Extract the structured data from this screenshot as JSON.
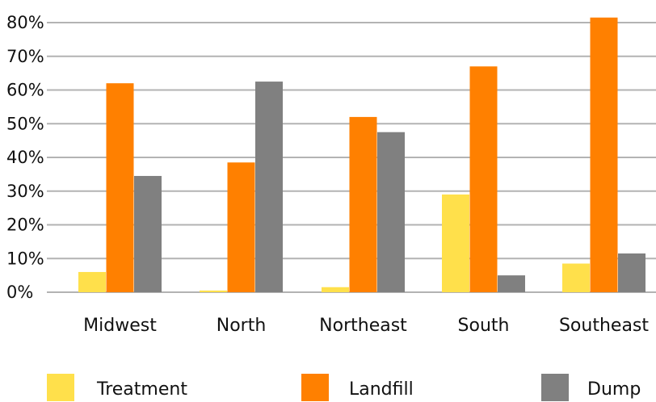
{
  "chart_data": {
    "type": "bar",
    "title": "",
    "xlabel": "",
    "ylabel": "",
    "categories": [
      "Midwest",
      "North",
      "Northeast",
      "South",
      "Southeast"
    ],
    "series": [
      {
        "name": "Treatment",
        "color": "#FFE04B",
        "values": [
          6,
          0.5,
          1.5,
          29,
          8.5
        ]
      },
      {
        "name": "Landfill",
        "color": "#FF8000",
        "values": [
          62,
          38.5,
          52,
          67,
          81.5
        ]
      },
      {
        "name": "Dump",
        "color": "#808080",
        "values": [
          34.5,
          62.5,
          47.5,
          5,
          11.5
        ]
      }
    ],
    "ylim": [
      0,
      80
    ],
    "yticks": [
      0,
      10,
      20,
      30,
      40,
      50,
      60,
      70,
      80
    ],
    "ytick_labels": [
      "0%",
      "10%",
      "20%",
      "30%",
      "40%",
      "50%",
      "60%",
      "70%",
      "80%"
    ],
    "grid": true,
    "grid_color": "#b3b3b3",
    "legend_position": "bottom"
  }
}
